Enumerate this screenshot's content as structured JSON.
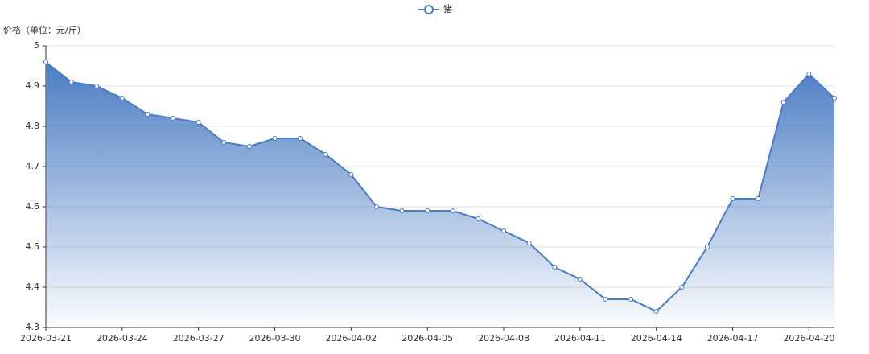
{
  "chart_data": {
    "type": "line",
    "y_axis_name": "价格（单位：元/斤）",
    "categories": [
      "2026-03-21",
      null,
      null,
      "2026-03-24",
      null,
      null,
      "2026-03-27",
      null,
      null,
      "2026-03-30",
      null,
      null,
      "2026-04-02",
      null,
      null,
      "2026-04-05",
      null,
      null,
      "2026-04-08",
      null,
      null,
      "2026-04-11",
      null,
      null,
      "2026-04-14",
      null,
      null,
      "2026-04-17",
      null,
      null,
      "2026-04-20",
      null
    ],
    "series": [
      {
        "name": "猪",
        "color": "#4a7cc4",
        "values": [
          4.96,
          4.91,
          4.9,
          4.87,
          4.83,
          4.82,
          4.81,
          4.76,
          4.75,
          4.77,
          4.77,
          4.73,
          4.68,
          4.6,
          4.59,
          4.59,
          4.59,
          4.57,
          4.54,
          4.51,
          4.45,
          4.42,
          4.37,
          4.37,
          4.34,
          4.4,
          4.5,
          4.62,
          4.62,
          4.86,
          4.93,
          4.87
        ]
      }
    ],
    "ylim": [
      4.3,
      5
    ],
    "yticks": [
      4.3,
      4.4,
      4.5,
      4.6,
      4.7,
      4.8,
      4.9,
      5
    ],
    "grid": true
  }
}
